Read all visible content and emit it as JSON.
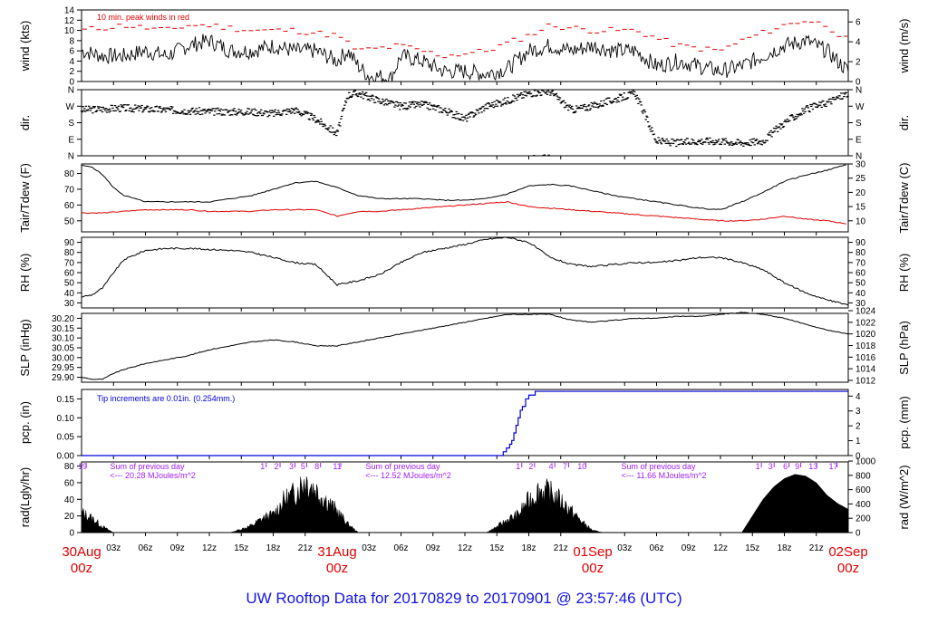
{
  "title": "UW Rooftop Data for 20170829  to  20170901 @ 23:57:46  (UTC)",
  "colors": {
    "black": "#000000",
    "red": "#e00000",
    "blue": "#0000dd",
    "purple": "#a020f0",
    "title": "#1414e6"
  },
  "time_axis": {
    "range_hours": [
      0,
      72
    ],
    "ticks": [
      {
        "h": 3,
        "label": "03z"
      },
      {
        "h": 6,
        "label": "06z"
      },
      {
        "h": 9,
        "label": "09z"
      },
      {
        "h": 12,
        "label": "12z"
      },
      {
        "h": 15,
        "label": "15z"
      },
      {
        "h": 18,
        "label": "18z"
      },
      {
        "h": 21,
        "label": "21z"
      },
      {
        "h": 27,
        "label": "03z"
      },
      {
        "h": 30,
        "label": "06z"
      },
      {
        "h": 33,
        "label": "09z"
      },
      {
        "h": 36,
        "label": "12z"
      },
      {
        "h": 39,
        "label": "15z"
      },
      {
        "h": 42,
        "label": "18z"
      },
      {
        "h": 45,
        "label": "21z"
      },
      {
        "h": 51,
        "label": "03z"
      },
      {
        "h": 54,
        "label": "06z"
      },
      {
        "h": 57,
        "label": "09z"
      },
      {
        "h": 60,
        "label": "12z"
      },
      {
        "h": 63,
        "label": "15z"
      },
      {
        "h": 66,
        "label": "18z"
      },
      {
        "h": 69,
        "label": "21z"
      }
    ],
    "days": [
      {
        "h": 0,
        "date": "30Aug",
        "time": "00z"
      },
      {
        "h": 24,
        "date": "31Aug",
        "time": "00z"
      },
      {
        "h": 48,
        "date": "01Sep",
        "time": "00z"
      },
      {
        "h": 72,
        "date": "02Sep",
        "time": "00z"
      }
    ]
  },
  "chart_data": [
    {
      "type": "line",
      "id": "wind",
      "ylabel": "wind (kts)",
      "ylabel_right": "wind (m/s)",
      "ylim": [
        0,
        14
      ],
      "yticks": [
        "0",
        "2",
        "4",
        "6",
        "8",
        "10",
        "12",
        "14"
      ],
      "yticks_right": [
        {
          "v": 0,
          "label": "0"
        },
        {
          "v": 2,
          "label": "2"
        },
        {
          "v": 4,
          "label": "4"
        },
        {
          "v": 6,
          "label": "6"
        }
      ],
      "annotation": "10 min. peak winds in red",
      "series": [
        {
          "x": [
            0,
            2,
            4,
            6,
            8,
            10,
            12,
            14,
            16,
            18,
            20,
            22,
            24,
            25,
            26,
            27,
            28,
            29,
            30,
            32,
            34,
            36,
            38,
            40,
            42,
            44,
            46,
            48,
            50,
            52,
            54,
            56,
            58,
            60,
            62,
            64,
            66,
            68,
            70,
            72
          ],
          "values": [
            6,
            5,
            5,
            6,
            5,
            7,
            8,
            6,
            6,
            7,
            6,
            6,
            4,
            6,
            3,
            1,
            1,
            0.5,
            5,
            4,
            2,
            2,
            1.5,
            2.5,
            6,
            7,
            6,
            7,
            6,
            6,
            3,
            4,
            3,
            2,
            3,
            5,
            7,
            8,
            6,
            2
          ]
        },
        {
          "x": [
            0,
            4,
            8,
            10,
            12,
            16,
            20,
            24,
            26,
            30,
            34,
            38,
            42,
            44,
            48,
            52,
            56,
            60,
            62,
            66,
            68,
            70,
            72
          ],
          "values": [
            10,
            11,
            10,
            11,
            11,
            10,
            10,
            9,
            6,
            7,
            5,
            6,
            9,
            11,
            10,
            10,
            7,
            6,
            8,
            11,
            12,
            11,
            8
          ]
        }
      ]
    },
    {
      "type": "scatter",
      "id": "dir",
      "ylabel": "dir.",
      "ylabel_right": "dir.",
      "ylim": [
        0,
        360
      ],
      "yticks": [
        "N",
        "E",
        "S",
        "W",
        "N"
      ],
      "series": [
        {
          "x": [
            0,
            4,
            8,
            12,
            16,
            18,
            20,
            22,
            24,
            25,
            26,
            28,
            30,
            32,
            34,
            36,
            38,
            40,
            42,
            44,
            46,
            48,
            52,
            54,
            56,
            58,
            60,
            62,
            64,
            66,
            68,
            70,
            72
          ],
          "values": [
            250,
            260,
            250,
            240,
            240,
            230,
            250,
            200,
            120,
            330,
            340,
            300,
            270,
            280,
            250,
            200,
            270,
            300,
            340,
            350,
            250,
            270,
            340,
            80,
            70,
            80,
            80,
            70,
            80,
            180,
            250,
            290,
            340
          ]
        }
      ]
    },
    {
      "type": "line",
      "id": "temp",
      "ylabel": "Tair/Tdew (F)",
      "ylabel_right": "Tair/Tdew (C)",
      "ylim": [
        43,
        86
      ],
      "yticks": [
        "50",
        "60",
        "70",
        "80"
      ],
      "yticks_right": [
        {
          "v": 10,
          "label": "10"
        },
        {
          "v": 15,
          "label": "15"
        },
        {
          "v": 20,
          "label": "20"
        },
        {
          "v": 25,
          "label": "25"
        },
        {
          "v": 30,
          "label": "30"
        }
      ],
      "series": [
        {
          "name": "Tair",
          "x": [
            0,
            1,
            2,
            3,
            4,
            6,
            8,
            10,
            12,
            14,
            16,
            18,
            20,
            22,
            24,
            26,
            28,
            30,
            32,
            34,
            36,
            38,
            40,
            42,
            44,
            46,
            48,
            50,
            52,
            54,
            56,
            58,
            60,
            62,
            64,
            66,
            68,
            70,
            72
          ],
          "values": [
            85,
            84,
            79,
            71,
            66,
            62,
            62,
            62,
            62,
            64,
            66,
            70,
            74,
            75,
            71,
            66,
            64,
            64,
            64,
            63,
            63,
            64,
            67,
            72,
            73,
            72,
            69,
            66,
            64,
            62,
            60,
            58,
            57,
            62,
            68,
            75,
            79,
            82,
            86
          ]
        },
        {
          "name": "Tdew",
          "x": [
            0,
            2,
            4,
            6,
            8,
            10,
            12,
            14,
            16,
            18,
            20,
            22,
            24,
            26,
            28,
            30,
            32,
            34,
            36,
            38,
            40,
            42,
            44,
            46,
            48,
            50,
            52,
            54,
            56,
            58,
            60,
            62,
            64,
            66,
            68,
            70,
            72
          ],
          "values": [
            55,
            55,
            56,
            57,
            57,
            57,
            56,
            56,
            56,
            57,
            57,
            57,
            53,
            56,
            56,
            57,
            58,
            59,
            60,
            61,
            62,
            59,
            58,
            57,
            56,
            55,
            54,
            53,
            52,
            51,
            50,
            50,
            51,
            53,
            51,
            50,
            48
          ]
        }
      ]
    },
    {
      "type": "line",
      "id": "rh",
      "ylabel": "RH (%)",
      "ylabel_right": "RH (%)",
      "ylim": [
        25,
        95
      ],
      "yticks": [
        "30",
        "40",
        "50",
        "60",
        "70",
        "80",
        "90"
      ],
      "series": [
        {
          "x": [
            0,
            1,
            2,
            3,
            4,
            6,
            8,
            10,
            12,
            14,
            16,
            18,
            20,
            22,
            24,
            26,
            28,
            30,
            32,
            34,
            36,
            38,
            40,
            42,
            44,
            46,
            48,
            50,
            52,
            54,
            56,
            58,
            60,
            62,
            64,
            66,
            68,
            70,
            72
          ],
          "values": [
            36,
            38,
            45,
            60,
            73,
            82,
            84,
            84,
            83,
            82,
            80,
            75,
            70,
            68,
            48,
            52,
            58,
            70,
            80,
            84,
            88,
            93,
            95,
            90,
            75,
            68,
            66,
            68,
            70,
            70,
            72,
            75,
            75,
            70,
            63,
            50,
            40,
            33,
            28
          ]
        }
      ]
    },
    {
      "type": "line",
      "id": "slp",
      "ylabel": "SLP (inHg)",
      "ylabel_right": "SLP (hPa)",
      "ylim": [
        29.875,
        30.225
      ],
      "yticks": [
        "29.90",
        "29.95",
        "30.00",
        "30.05",
        "30.10",
        "30.15",
        "30.20"
      ],
      "yticks_right": [
        {
          "v": 1012,
          "label": "1012"
        },
        {
          "v": 1014,
          "label": "1014"
        },
        {
          "v": 1016,
          "label": "1016"
        },
        {
          "v": 1018,
          "label": "1018"
        },
        {
          "v": 1020,
          "label": "1020"
        },
        {
          "v": 1022,
          "label": "1022"
        },
        {
          "v": 1024,
          "label": "1024"
        }
      ],
      "series": [
        {
          "x": [
            0,
            1,
            2,
            3,
            4,
            6,
            8,
            10,
            12,
            14,
            16,
            18,
            20,
            22,
            24,
            26,
            28,
            30,
            32,
            34,
            36,
            38,
            40,
            42,
            44,
            46,
            48,
            50,
            52,
            54,
            56,
            58,
            60,
            62,
            64,
            66,
            68,
            70,
            72
          ],
          "values": [
            29.9,
            29.89,
            29.89,
            29.92,
            29.94,
            29.97,
            29.99,
            30.01,
            30.04,
            30.06,
            30.08,
            30.09,
            30.08,
            30.06,
            30.06,
            30.08,
            30.1,
            30.12,
            30.14,
            30.16,
            30.18,
            30.2,
            30.22,
            30.22,
            30.22,
            30.19,
            30.18,
            30.19,
            30.2,
            30.2,
            30.21,
            30.21,
            30.22,
            30.23,
            30.22,
            30.2,
            30.17,
            30.14,
            30.12
          ]
        }
      ]
    },
    {
      "type": "line",
      "id": "pcp",
      "ylabel": "pcp. (in)",
      "ylabel_right": "pcp. (mm)",
      "ylim": [
        0,
        0.175
      ],
      "yticks": [
        "0.00",
        "0.05",
        "0.10",
        "0.15"
      ],
      "yticks_right": [
        {
          "v": 0,
          "label": "0"
        },
        {
          "v": 1,
          "label": "1"
        },
        {
          "v": 2,
          "label": "2"
        },
        {
          "v": 3,
          "label": "3"
        },
        {
          "v": 4,
          "label": "4"
        }
      ],
      "annotation": "Tip increments are 0.01in. (0.254mm.)",
      "series": [
        {
          "x": [
            0,
            39.4,
            39.6,
            39.9,
            40.2,
            40.4,
            40.6,
            40.8,
            41.0,
            41.2,
            41.4,
            41.7,
            42.0,
            42.3,
            42.6,
            43.0,
            44.0,
            72
          ],
          "values": [
            0,
            0,
            0.01,
            0.02,
            0.03,
            0.04,
            0.06,
            0.08,
            0.1,
            0.12,
            0.13,
            0.15,
            0.16,
            0.16,
            0.17,
            0.17,
            0.17,
            0.17
          ]
        }
      ]
    },
    {
      "type": "area",
      "id": "rad",
      "ylabel": "rad(Lgly/hr)",
      "ylabel_right": "rad (W/m^2)",
      "ylim": [
        0,
        85
      ],
      "yticks": [
        "0",
        "20",
        "40",
        "60",
        "80"
      ],
      "yticks_right": [
        {
          "v": 0,
          "label": "0"
        },
        {
          "v": 200,
          "label": "200"
        },
        {
          "v": 400,
          "label": "400"
        },
        {
          "v": 600,
          "label": "600"
        },
        {
          "v": 800,
          "label": "800"
        },
        {
          "v": 1000,
          "label": "1000"
        }
      ],
      "series": [
        {
          "x": [
            0,
            1,
            2,
            3,
            14,
            15,
            16,
            17,
            18,
            19,
            20,
            21,
            22,
            23,
            24,
            25,
            26,
            38,
            39,
            40,
            41,
            42,
            43,
            44,
            45,
            46,
            47,
            48,
            49,
            50,
            62,
            63,
            64,
            65,
            66,
            67,
            68,
            69,
            70,
            71,
            72
          ],
          "values": [
            28,
            20,
            8,
            0,
            0,
            5,
            10,
            20,
            25,
            45,
            55,
            75,
            60,
            45,
            30,
            12,
            0,
            0,
            8,
            18,
            25,
            45,
            60,
            55,
            45,
            30,
            15,
            3,
            0,
            0,
            0,
            20,
            40,
            55,
            65,
            70,
            68,
            60,
            45,
            35,
            28
          ]
        }
      ],
      "daily_sums": [
        {
          "h": 6,
          "title": "Sum of previous day",
          "value": "<--- 20.28 MJoules/m^2"
        },
        {
          "h": 30,
          "title": "Sum of previous day",
          "value": "<--- 12.52 MJoules/m^2"
        },
        {
          "h": 54,
          "title": "Sum of previous day",
          "value": "<--- 11.66 MJoules/m^2"
        }
      ],
      "hour_marks": [
        {
          "h": 0.1,
          "label": "19"
        },
        {
          "h": 17,
          "label": "1"
        },
        {
          "h": 18.3,
          "label": "2"
        },
        {
          "h": 19.7,
          "label": "3"
        },
        {
          "h": 20.8,
          "label": "5"
        },
        {
          "h": 22.1,
          "label": "8"
        },
        {
          "h": 24.0,
          "label": "11"
        },
        {
          "h": 41,
          "label": "1"
        },
        {
          "h": 42.2,
          "label": "2"
        },
        {
          "h": 44.1,
          "label": "4"
        },
        {
          "h": 45.4,
          "label": "7"
        },
        {
          "h": 47,
          "label": "10"
        },
        {
          "h": 63.5,
          "label": "1"
        },
        {
          "h": 64.7,
          "label": "3"
        },
        {
          "h": 66.1,
          "label": "6"
        },
        {
          "h": 67.2,
          "label": "9"
        },
        {
          "h": 68.7,
          "label": "13"
        },
        {
          "h": 70.6,
          "label": "17"
        }
      ]
    }
  ]
}
